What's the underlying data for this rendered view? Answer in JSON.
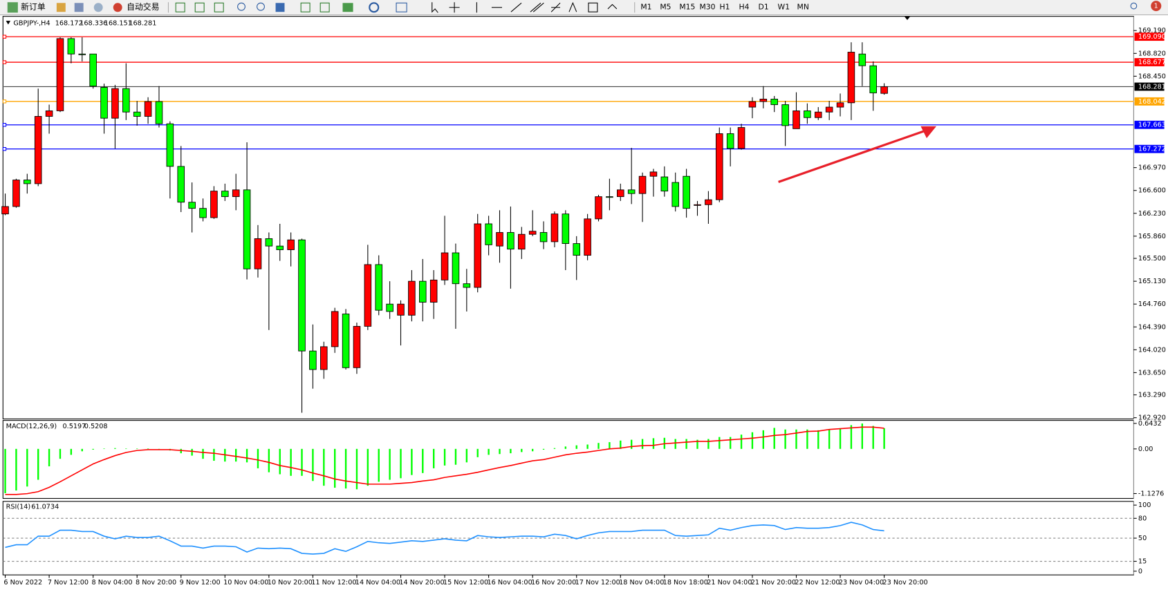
{
  "toolbar": {
    "new_order": "新订单",
    "auto_trading": "自动交易",
    "timeframes": [
      "M1",
      "M5",
      "M15",
      "M30",
      "H1",
      "H4",
      "D1",
      "W1",
      "MN"
    ],
    "badge": 1
  },
  "chart_data": [
    {
      "type": "candlestick",
      "symbol": "GBPJPY-,H4",
      "categories": [
        "6 Nov 2022",
        null,
        null,
        null,
        "7 Nov 12:00",
        null,
        null,
        null,
        "8 Nov 04:00",
        null,
        null,
        null,
        "8 Nov 20:00",
        null,
        null,
        null,
        "9 Nov 12:00",
        null,
        null,
        null,
        "10 Nov 04:00",
        null,
        null,
        null,
        "10 Nov 20:00",
        null,
        null,
        null,
        "11 Nov 12:00",
        null,
        null,
        null,
        "14 Nov 04:00",
        null,
        null,
        null,
        "14 Nov 20:00",
        null,
        null,
        null,
        "15 Nov 12:00",
        null,
        null,
        null,
        "16 Nov 04:00",
        null,
        null,
        null,
        "16 Nov 20:00",
        null,
        null,
        null,
        "17 Nov 12:00",
        null,
        null,
        null,
        "18 Nov 04:00",
        null,
        null,
        null,
        "18 Nov 18:00",
        null,
        null,
        null,
        "21 Nov 04:00",
        null,
        null,
        null,
        "21 Nov 20:00",
        null,
        null,
        null,
        "22 Nov 12:00",
        null,
        null,
        null,
        "23 Nov 04:00",
        null,
        null,
        null,
        "23 Nov 20:00"
      ],
      "open": [
        166.22,
        166.34,
        166.77,
        166.71,
        167.8,
        167.89,
        169.06,
        168.81,
        168.81,
        168.27,
        167.77,
        168.25,
        167.87,
        167.8,
        168.04,
        167.68,
        166.99,
        166.41,
        166.31,
        166.16,
        166.59,
        166.5,
        166.61,
        165.33,
        165.82,
        165.7,
        165.64,
        165.8,
        164.0,
        163.7,
        164.07,
        164.6,
        163.73,
        164.4,
        165.4,
        164.76,
        164.58,
        164.58,
        165.13,
        164.79,
        165.15,
        165.59,
        165.09,
        165.03,
        166.06,
        165.7,
        165.92,
        165.65,
        165.89,
        165.92,
        165.77,
        166.22,
        165.74,
        165.55,
        166.14,
        166.5,
        166.5,
        166.61,
        166.55,
        166.83,
        166.82,
        166.73,
        166.83,
        166.37,
        166.37,
        166.45,
        167.52,
        167.28,
        167.95,
        168.04,
        168.08,
        167.99,
        167.6,
        167.89,
        167.78,
        167.87,
        167.95,
        168.02,
        168.81,
        168.62,
        168.172
      ],
      "high": [
        166.55,
        166.79,
        166.87,
        168.25,
        167.99,
        169.08,
        169.08,
        169.08,
        168.81,
        168.33,
        168.31,
        168.66,
        168.05,
        168.11,
        168.29,
        167.72,
        167.32,
        166.73,
        166.47,
        166.67,
        166.71,
        166.87,
        167.38,
        166.04,
        165.92,
        166.06,
        165.92,
        165.82,
        164.43,
        164.15,
        164.7,
        164.68,
        164.46,
        165.72,
        165.55,
        165.13,
        164.82,
        165.31,
        165.49,
        165.31,
        166.19,
        165.74,
        165.33,
        166.22,
        166.19,
        166.28,
        166.34,
        166.01,
        166.28,
        166.1,
        166.26,
        166.28,
        165.86,
        166.22,
        166.53,
        166.79,
        166.71,
        167.29,
        166.89,
        166.95,
        166.99,
        166.89,
        166.95,
        166.43,
        166.59,
        167.62,
        167.62,
        167.68,
        168.11,
        168.29,
        168.13,
        168.05,
        168.19,
        168.01,
        167.95,
        168.05,
        168.17,
        169.0,
        169.0,
        168.69,
        168.336
      ],
      "low": [
        166.2,
        166.32,
        166.55,
        166.67,
        167.52,
        167.87,
        168.66,
        168.69,
        168.25,
        167.52,
        167.28,
        167.74,
        167.65,
        167.68,
        167.62,
        166.47,
        166.25,
        165.92,
        166.1,
        166.14,
        166.43,
        166.28,
        165.16,
        165.19,
        164.34,
        165.46,
        165.37,
        163.0,
        163.39,
        163.55,
        163.97,
        163.7,
        163.63,
        164.34,
        164.58,
        164.52,
        164.09,
        164.48,
        164.48,
        164.52,
        165.07,
        164.36,
        164.64,
        164.95,
        165.55,
        165.43,
        165.01,
        165.49,
        165.86,
        165.65,
        165.68,
        165.31,
        165.15,
        165.47,
        166.1,
        166.28,
        166.43,
        166.38,
        166.09,
        166.5,
        166.5,
        166.26,
        166.16,
        166.19,
        166.06,
        166.41,
        166.99,
        167.26,
        167.77,
        167.93,
        167.87,
        167.32,
        167.6,
        167.68,
        167.74,
        167.74,
        167.8,
        167.74,
        168.29,
        167.89,
        168.151
      ],
      "close": [
        166.34,
        166.77,
        166.71,
        167.8,
        167.89,
        169.06,
        168.81,
        168.8,
        168.29,
        167.77,
        168.25,
        167.87,
        167.8,
        168.04,
        167.68,
        166.99,
        166.41,
        166.31,
        166.16,
        166.59,
        166.5,
        166.61,
        165.33,
        165.82,
        165.7,
        165.64,
        165.8,
        164.0,
        163.7,
        164.07,
        164.64,
        163.73,
        164.4,
        165.4,
        164.66,
        164.64,
        164.76,
        165.13,
        164.79,
        165.15,
        165.59,
        165.09,
        165.03,
        166.06,
        165.72,
        165.92,
        165.65,
        165.89,
        165.94,
        165.77,
        166.22,
        165.74,
        165.55,
        166.14,
        166.5,
        166.49,
        166.61,
        166.55,
        166.83,
        166.9,
        166.59,
        166.34,
        166.31,
        166.37,
        166.45,
        167.52,
        167.28,
        167.62,
        168.04,
        168.08,
        167.99,
        167.65,
        167.89,
        167.78,
        167.87,
        167.95,
        168.02,
        168.84,
        168.62,
        168.18,
        168.281
      ],
      "up_color": "#ff0000",
      "down_color": "#00ff00",
      "wick_color": "#000000",
      "ylim": [
        162.9,
        169.42
      ],
      "yticks": [
        {
          "value": 169.19,
          "label": "169.190"
        },
        {
          "value": 168.82,
          "label": "168.820"
        },
        {
          "value": 168.45,
          "label": "168.450"
        },
        {
          "value": 166.97,
          "label": "166.970"
        },
        {
          "value": 166.6,
          "label": "166.600"
        },
        {
          "value": 166.23,
          "label": "166.230"
        },
        {
          "value": 165.86,
          "label": "165.860"
        },
        {
          "value": 165.5,
          "label": "165.500"
        },
        {
          "value": 165.13,
          "label": "165.130"
        },
        {
          "value": 164.76,
          "label": "164.760"
        },
        {
          "value": 164.39,
          "label": "164.390"
        },
        {
          "value": 164.02,
          "label": "164.020"
        },
        {
          "value": 163.65,
          "label": "163.650"
        },
        {
          "value": 163.29,
          "label": "163.290"
        },
        {
          "value": 162.92,
          "label": "162.920"
        }
      ],
      "levels": [
        {
          "value": 169.09,
          "label": "169.090",
          "color": "#ff0000"
        },
        {
          "value": 168.677,
          "label": "168.677",
          "color": "#ff0000"
        },
        {
          "value": 168.042,
          "label": "168.042",
          "color": "#ffa500"
        },
        {
          "value": 167.663,
          "label": "167.663",
          "color": "#0000ff"
        },
        {
          "value": 167.272,
          "label": "167.272",
          "color": "#0000ff"
        }
      ],
      "grid": false
    },
    {
      "type": "macd",
      "title": "MACD(12,26,9)",
      "histogram": [
        -1.12,
        -1.05,
        -0.95,
        -0.78,
        -0.44,
        -0.25,
        -0.15,
        -0.06,
        -0.02,
        0.01,
        0.02,
        0.01,
        0.01,
        0.01,
        -0.01,
        -0.04,
        -0.11,
        -0.17,
        -0.25,
        -0.3,
        -0.32,
        -0.32,
        -0.34,
        -0.49,
        -0.59,
        -0.64,
        -0.68,
        -0.68,
        -0.81,
        -0.93,
        -0.98,
        -1.0,
        -1.02,
        -0.93,
        -0.83,
        -0.78,
        -0.74,
        -0.66,
        -0.61,
        -0.49,
        -0.42,
        -0.4,
        -0.34,
        -0.21,
        -0.15,
        -0.13,
        -0.11,
        -0.08,
        -0.06,
        -0.02,
        0.02,
        0.06,
        0.09,
        0.11,
        0.15,
        0.17,
        0.21,
        0.23,
        0.25,
        0.27,
        0.28,
        0.25,
        0.25,
        0.23,
        0.25,
        0.3,
        0.3,
        0.36,
        0.42,
        0.47,
        0.53,
        0.49,
        0.49,
        0.49,
        0.47,
        0.49,
        0.51,
        0.6,
        0.64,
        0.58,
        0.5197
      ],
      "signal": [
        -1.15,
        -1.15,
        -1.13,
        -1.08,
        -0.97,
        -0.83,
        -0.68,
        -0.53,
        -0.38,
        -0.27,
        -0.17,
        -0.09,
        -0.04,
        -0.02,
        -0.02,
        -0.02,
        -0.04,
        -0.06,
        -0.09,
        -0.11,
        -0.15,
        -0.19,
        -0.23,
        -0.28,
        -0.34,
        -0.42,
        -0.47,
        -0.53,
        -0.61,
        -0.68,
        -0.76,
        -0.81,
        -0.85,
        -0.89,
        -0.89,
        -0.89,
        -0.87,
        -0.85,
        -0.81,
        -0.78,
        -0.72,
        -0.68,
        -0.64,
        -0.59,
        -0.53,
        -0.47,
        -0.42,
        -0.36,
        -0.3,
        -0.27,
        -0.21,
        -0.15,
        -0.11,
        -0.08,
        -0.04,
        0.0,
        0.02,
        0.06,
        0.08,
        0.09,
        0.13,
        0.15,
        0.17,
        0.19,
        0.19,
        0.21,
        0.23,
        0.25,
        0.27,
        0.3,
        0.34,
        0.36,
        0.4,
        0.44,
        0.45,
        0.49,
        0.51,
        0.53,
        0.55,
        0.55,
        0.5208
      ],
      "histogram_color": "#00ff00",
      "signal_color": "#ff0000",
      "ylim": [
        -1.25,
        0.7
      ],
      "yticks": [
        0.6432,
        {
          "value": 0,
          "label": "0.00"
        },
        -1.1276
      ]
    },
    {
      "type": "rsi",
      "title": "RSI(14)",
      "values": [
        36,
        40,
        40,
        53,
        53,
        62,
        62,
        60,
        60,
        53,
        49,
        53,
        51,
        51,
        53,
        46,
        38,
        38,
        35,
        38,
        38,
        37,
        29,
        35,
        34,
        35,
        34,
        27,
        26,
        27,
        34,
        30,
        37,
        45,
        43,
        42,
        44,
        46,
        45,
        47,
        49,
        47,
        46,
        54,
        52,
        51,
        52,
        53,
        53,
        52,
        56,
        54,
        49,
        54,
        58,
        60,
        60,
        60,
        62,
        62,
        62,
        54,
        53,
        54,
        55,
        65,
        62,
        66,
        69,
        70,
        69,
        63,
        66,
        65,
        65,
        66,
        69,
        74,
        70,
        63,
        61.0734
      ],
      "color": "#1e90ff",
      "ylim": [
        0,
        100
      ],
      "yticks": [
        100,
        80,
        50,
        15,
        0
      ]
    }
  ]
}
